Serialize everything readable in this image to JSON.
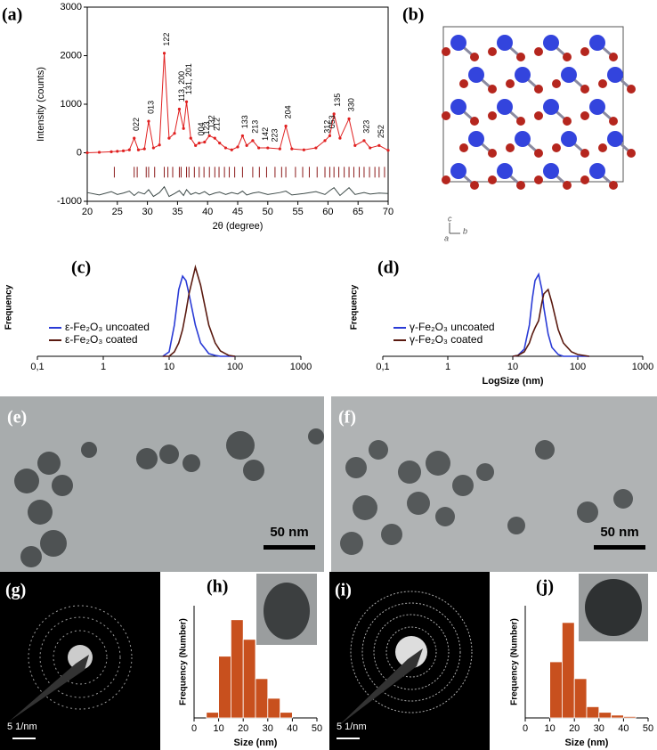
{
  "chart_data": [
    {
      "type": "line",
      "panel_label": "(a)",
      "x_label": "2θ (degree)",
      "y_label": "Intensity (counts)",
      "xlim": [
        20,
        70
      ],
      "ylim": [
        -1000,
        3000
      ],
      "xticks": [
        20,
        25,
        30,
        35,
        40,
        45,
        50,
        55,
        60,
        65,
        70
      ],
      "yticks": [
        -1000,
        0,
        1000,
        2000,
        3000
      ],
      "x": [
        20,
        22,
        24,
        25,
        26,
        27,
        27.8,
        28.5,
        29.5,
        30.2,
        31,
        32,
        32.8,
        33.6,
        34.5,
        35.3,
        36,
        36.5,
        37.2,
        38,
        38.6,
        39.5,
        40.3,
        41.2,
        42,
        43,
        44,
        45,
        45.8,
        46.5,
        47.5,
        48.5,
        50,
        52,
        53,
        54,
        56,
        58,
        59.5,
        60.3,
        61,
        62,
        63.5,
        64.5,
        66,
        67,
        68.5,
        70
      ],
      "series": [
        {
          "color": "#e02020",
          "markers": true,
          "values": [
            0,
            10,
            20,
            30,
            40,
            60,
            300,
            60,
            80,
            650,
            100,
            160,
            2050,
            300,
            400,
            900,
            500,
            1050,
            300,
            150,
            200,
            220,
            350,
            300,
            200,
            100,
            60,
            120,
            350,
            150,
            250,
            100,
            100,
            80,
            550,
            80,
            60,
            100,
            250,
            350,
            800,
            300,
            700,
            150,
            250,
            100,
            150,
            50
          ]
        },
        {
          "color": "#3d4a48",
          "markers": false,
          "values": [
            -820,
            -870,
            -800,
            -860,
            -830,
            -790,
            -880,
            -810,
            -850,
            -760,
            -900,
            -820,
            -700,
            -900,
            -840,
            -780,
            -880,
            -760,
            -860,
            -820,
            -850,
            -800,
            -870,
            -830,
            -810,
            -860,
            -820,
            -850,
            -790,
            -870,
            -830,
            -810,
            -860,
            -820,
            -790,
            -870,
            -840,
            -800,
            -860,
            -780,
            -720,
            -880,
            -720,
            -860,
            -820,
            -850,
            -830,
            -840
          ]
        }
      ],
      "reflections": {
        "color": "#8b1a1a",
        "x": [
          24.5,
          27.8,
          28.3,
          29.8,
          30.2,
          31.2,
          32.8,
          33.4,
          34.2,
          35.3,
          35.6,
          36.5,
          36.9,
          37.8,
          38.6,
          39.4,
          40.3,
          41.2,
          41.9,
          42.8,
          43.6,
          44.5,
          45.8,
          47.5,
          48.6,
          49.8,
          51.2,
          52.3,
          53,
          54.6,
          55.8,
          56.9,
          58.2,
          59.5,
          60.3,
          61,
          61.8,
          62.7,
          63.5,
          64.3,
          65.2,
          66,
          66.9,
          67.8,
          68.5,
          69.4
        ]
      },
      "annotations": [
        {
          "text": "022",
          "x": 27.8,
          "y": 450
        },
        {
          "text": "013",
          "x": 30.2,
          "y": 800
        },
        {
          "text": "122",
          "x": 32.8,
          "y": 2200
        },
        {
          "text": "113, 200",
          "x": 35.3,
          "y": 1050
        },
        {
          "text": "131, 201",
          "x": 36.5,
          "y": 1200
        },
        {
          "text": "004",
          "x": 38.6,
          "y": 350
        },
        {
          "text": "123",
          "x": 39.5,
          "y": 370
        },
        {
          "text": "132",
          "x": 40.3,
          "y": 500
        },
        {
          "text": "212",
          "x": 41.2,
          "y": 450
        },
        {
          "text": "133",
          "x": 45.8,
          "y": 500
        },
        {
          "text": "213",
          "x": 47.5,
          "y": 400
        },
        {
          "text": "142",
          "x": 49.2,
          "y": 250
        },
        {
          "text": "223",
          "x": 50.8,
          "y": 220
        },
        {
          "text": "204",
          "x": 53,
          "y": 700
        },
        {
          "text": "312",
          "x": 59.5,
          "y": 400
        },
        {
          "text": "053",
          "x": 60.3,
          "y": 500
        },
        {
          "text": "135",
          "x": 61.2,
          "y": 950
        },
        {
          "text": "330",
          "x": 63.5,
          "y": 850
        },
        {
          "text": "323",
          "x": 66,
          "y": 400
        },
        {
          "text": "252",
          "x": 68.5,
          "y": 300
        }
      ]
    },
    {
      "type": "line",
      "panel_label": "(c)",
      "y_label": "Frequency",
      "log_x": true,
      "legend": "center left",
      "xlim": [
        0.1,
        1000
      ],
      "ylim": [
        0,
        1.1
      ],
      "xticks": [
        {
          "value": 0.1,
          "label": "0,1"
        },
        1,
        10,
        100,
        1000
      ],
      "x": [
        8,
        10,
        12,
        14,
        16,
        18,
        20,
        25,
        30,
        40,
        50,
        60,
        80,
        100
      ],
      "series": [
        {
          "name": "ε-Fe₂O₃ uncoated",
          "color": "#2a3bd6",
          "values": [
            0,
            0.05,
            0.35,
            0.75,
            0.9,
            0.85,
            0.7,
            0.35,
            0.15,
            0.03,
            0.01,
            0,
            0,
            0
          ]
        },
        {
          "name": "ε-Fe₂O₃ coated",
          "color": "#5a1a10",
          "values": [
            0,
            0,
            0.05,
            0.15,
            0.3,
            0.5,
            0.7,
            1.0,
            0.8,
            0.35,
            0.15,
            0.06,
            0.01,
            0
          ]
        }
      ]
    },
    {
      "type": "line",
      "panel_label": "(d)",
      "y_label": "Frequency",
      "x_label": "LogSize (nm)",
      "log_x": true,
      "legend": "center left",
      "xlim": [
        0.1,
        1000
      ],
      "ylim": [
        0,
        1.1
      ],
      "xticks": [
        {
          "value": 0.1,
          "label": "0,1"
        },
        1,
        10,
        100,
        1000
      ],
      "x": [
        10,
        12,
        15,
        18,
        20,
        22,
        25,
        28,
        30,
        35,
        40,
        50,
        60,
        80,
        100,
        150
      ],
      "series": [
        {
          "name": "γ-Fe₂O₃ uncoated",
          "color": "#2a3bd6",
          "values": [
            0,
            0.01,
            0.08,
            0.35,
            0.65,
            0.85,
            0.92,
            0.75,
            0.55,
            0.25,
            0.1,
            0.02,
            0,
            0,
            0,
            0
          ]
        },
        {
          "name": "γ-Fe₂O₃ coated",
          "color": "#5a1a10",
          "values": [
            0,
            0.01,
            0.05,
            0.15,
            0.25,
            0.32,
            0.4,
            0.6,
            0.7,
            0.75,
            0.6,
            0.3,
            0.15,
            0.05,
            0.02,
            0
          ]
        }
      ]
    },
    {
      "type": "histogram",
      "panel_label": "(h)",
      "x_label": "Size (nm)",
      "y_label": "Frequency (Number)",
      "color": "#c8501e",
      "xlim": [
        0,
        50
      ],
      "ylim": [
        0,
        40
      ],
      "xticks": [
        0,
        10,
        20,
        30,
        40,
        50
      ],
      "bins": [
        5,
        10,
        15,
        20,
        25,
        30,
        35,
        40
      ],
      "values": [
        2,
        22,
        35,
        28,
        14,
        7,
        2
      ]
    },
    {
      "type": "histogram",
      "panel_label": "(j)",
      "x_label": "Size (nm)",
      "y_label": "Frequency (Number)",
      "color": "#c8501e",
      "xlim": [
        0,
        50
      ],
      "ylim": [
        0,
        40
      ],
      "xticks": [
        0,
        10,
        20,
        30,
        40,
        50
      ],
      "bins": [
        10,
        15,
        20,
        25,
        30,
        35,
        40,
        45
      ],
      "values": [
        20,
        34,
        14,
        4,
        2,
        1,
        0.5
      ]
    }
  ],
  "panels": {
    "b": {
      "label": "(b)",
      "axis_labels": [
        "c",
        "a",
        "b"
      ]
    },
    "e": {
      "label": "(e)",
      "scale_bar": "50 nm"
    },
    "f": {
      "label": "(f)",
      "scale_bar": "50 nm"
    },
    "g": {
      "label": "(g)",
      "scale_bar": "5 1/nm"
    },
    "i": {
      "label": "(i)",
      "scale_bar": "5 1/nm"
    }
  }
}
